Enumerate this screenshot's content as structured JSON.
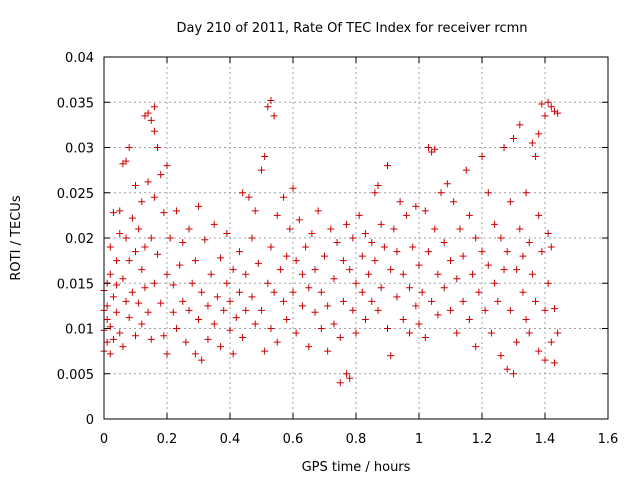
{
  "chart_data": {
    "type": "scatter",
    "title": "Day 210 of 2011, Rate Of TEC Index for receiver rcmn",
    "xlabel": "GPS time / hours",
    "ylabel": "ROTI / TECUs",
    "xlim": [
      0,
      1.6
    ],
    "ylim": [
      0,
      0.04
    ],
    "x_ticks": [
      "0",
      "0.2",
      "0.4",
      "0.6",
      "0.8",
      "1",
      "1.2",
      "1.4",
      "1.6"
    ],
    "y_ticks": [
      "0",
      "0.005",
      "0.01",
      "0.015",
      "0.02",
      "0.025",
      "0.03",
      "0.035",
      "0.04"
    ],
    "grid": true,
    "marker": "+",
    "colors": {
      "series": "#cc0000",
      "grid": "#a0a0a0",
      "axis": "#000000"
    },
    "series": [
      {
        "values": [
          [
            0.0,
            0.0142
          ],
          [
            0.0,
            0.012
          ],
          [
            0.0,
            0.0098
          ],
          [
            0.0,
            0.0075
          ],
          [
            0.01,
            0.015
          ],
          [
            0.01,
            0.011
          ],
          [
            0.01,
            0.0085
          ],
          [
            0.01,
            0.0125
          ],
          [
            0.02,
            0.016
          ],
          [
            0.02,
            0.0102
          ],
          [
            0.02,
            0.019
          ],
          [
            0.02,
            0.0072
          ],
          [
            0.03,
            0.0135
          ],
          [
            0.03,
            0.0228
          ],
          [
            0.03,
            0.0088
          ],
          [
            0.04,
            0.0175
          ],
          [
            0.04,
            0.0118
          ],
          [
            0.04,
            0.0148
          ],
          [
            0.05,
            0.023
          ],
          [
            0.05,
            0.0095
          ],
          [
            0.05,
            0.0205
          ],
          [
            0.06,
            0.0282
          ],
          [
            0.06,
            0.0155
          ],
          [
            0.06,
            0.008
          ],
          [
            0.07,
            0.02
          ],
          [
            0.07,
            0.013
          ],
          [
            0.07,
            0.0285
          ],
          [
            0.08,
            0.03
          ],
          [
            0.08,
            0.0112
          ],
          [
            0.08,
            0.0175
          ],
          [
            0.09,
            0.014
          ],
          [
            0.09,
            0.0222
          ],
          [
            0.1,
            0.0258
          ],
          [
            0.1,
            0.0185
          ],
          [
            0.1,
            0.0092
          ],
          [
            0.11,
            0.0128
          ],
          [
            0.11,
            0.021
          ],
          [
            0.12,
            0.0165
          ],
          [
            0.12,
            0.0105
          ],
          [
            0.12,
            0.024
          ],
          [
            0.13,
            0.019
          ],
          [
            0.13,
            0.0335
          ],
          [
            0.13,
            0.0145
          ],
          [
            0.14,
            0.0338
          ],
          [
            0.14,
            0.0262
          ],
          [
            0.14,
            0.0118
          ],
          [
            0.15,
            0.033
          ],
          [
            0.15,
            0.02
          ],
          [
            0.15,
            0.0088
          ],
          [
            0.16,
            0.0318
          ],
          [
            0.16,
            0.0345
          ],
          [
            0.16,
            0.0245
          ],
          [
            0.16,
            0.015
          ],
          [
            0.17,
            0.03
          ],
          [
            0.17,
            0.0182
          ],
          [
            0.18,
            0.027
          ],
          [
            0.18,
            0.0128
          ],
          [
            0.19,
            0.0228
          ],
          [
            0.19,
            0.0092
          ],
          [
            0.2,
            0.028
          ],
          [
            0.2,
            0.016
          ],
          [
            0.2,
            0.0072
          ],
          [
            0.21,
            0.02
          ],
          [
            0.22,
            0.0118
          ],
          [
            0.22,
            0.0148
          ],
          [
            0.23,
            0.023
          ],
          [
            0.23,
            0.01
          ],
          [
            0.24,
            0.017
          ],
          [
            0.25,
            0.013
          ],
          [
            0.25,
            0.0195
          ],
          [
            0.26,
            0.0085
          ],
          [
            0.27,
            0.021
          ],
          [
            0.27,
            0.012
          ],
          [
            0.28,
            0.015
          ],
          [
            0.29,
            0.0072
          ],
          [
            0.29,
            0.0175
          ],
          [
            0.3,
            0.011
          ],
          [
            0.3,
            0.0235
          ],
          [
            0.31,
            0.014
          ],
          [
            0.31,
            0.0065
          ],
          [
            0.32,
            0.0198
          ],
          [
            0.33,
            0.0125
          ],
          [
            0.33,
            0.0088
          ],
          [
            0.34,
            0.016
          ],
          [
            0.35,
            0.0105
          ],
          [
            0.35,
            0.0215
          ],
          [
            0.36,
            0.0135
          ],
          [
            0.37,
            0.0178
          ],
          [
            0.37,
            0.008
          ],
          [
            0.38,
            0.012
          ],
          [
            0.39,
            0.015
          ],
          [
            0.39,
            0.0205
          ],
          [
            0.4,
            0.0098
          ],
          [
            0.4,
            0.013
          ],
          [
            0.41,
            0.0072
          ],
          [
            0.41,
            0.0165
          ],
          [
            0.42,
            0.0112
          ],
          [
            0.43,
            0.0185
          ],
          [
            0.43,
            0.014
          ],
          [
            0.44,
            0.025
          ],
          [
            0.44,
            0.009
          ],
          [
            0.45,
            0.016
          ],
          [
            0.45,
            0.012
          ],
          [
            0.46,
            0.0245
          ],
          [
            0.47,
            0.0135
          ],
          [
            0.47,
            0.02
          ],
          [
            0.48,
            0.0105
          ],
          [
            0.48,
            0.023
          ],
          [
            0.49,
            0.0172
          ],
          [
            0.5,
            0.0275
          ],
          [
            0.5,
            0.012
          ],
          [
            0.51,
            0.0075
          ],
          [
            0.51,
            0.029
          ],
          [
            0.52,
            0.015
          ],
          [
            0.52,
            0.0345
          ],
          [
            0.53,
            0.0352
          ],
          [
            0.53,
            0.019
          ],
          [
            0.53,
            0.01
          ],
          [
            0.54,
            0.0335
          ],
          [
            0.54,
            0.014
          ],
          [
            0.55,
            0.0225
          ],
          [
            0.55,
            0.0085
          ],
          [
            0.56,
            0.0165
          ],
          [
            0.57,
            0.013
          ],
          [
            0.57,
            0.0245
          ],
          [
            0.58,
            0.011
          ],
          [
            0.58,
            0.018
          ],
          [
            0.59,
            0.021
          ],
          [
            0.6,
            0.0255
          ],
          [
            0.6,
            0.014
          ],
          [
            0.61,
            0.0095
          ],
          [
            0.61,
            0.0175
          ],
          [
            0.62,
            0.022
          ],
          [
            0.63,
            0.0125
          ],
          [
            0.63,
            0.016
          ],
          [
            0.64,
            0.019
          ],
          [
            0.65,
            0.008
          ],
          [
            0.65,
            0.0145
          ],
          [
            0.66,
            0.0205
          ],
          [
            0.67,
            0.0118
          ],
          [
            0.67,
            0.0165
          ],
          [
            0.68,
            0.023
          ],
          [
            0.69,
            0.01
          ],
          [
            0.69,
            0.014
          ],
          [
            0.7,
            0.018
          ],
          [
            0.71,
            0.0125
          ],
          [
            0.71,
            0.0075
          ],
          [
            0.72,
            0.021
          ],
          [
            0.73,
            0.0155
          ],
          [
            0.73,
            0.0105
          ],
          [
            0.74,
            0.0195
          ],
          [
            0.75,
            0.009
          ],
          [
            0.75,
            0.004
          ],
          [
            0.76,
            0.013
          ],
          [
            0.76,
            0.0175
          ],
          [
            0.77,
            0.005
          ],
          [
            0.77,
            0.0215
          ],
          [
            0.78,
            0.0165
          ],
          [
            0.78,
            0.0045
          ],
          [
            0.79,
            0.012
          ],
          [
            0.79,
            0.02
          ],
          [
            0.8,
            0.015
          ],
          [
            0.8,
            0.0095
          ],
          [
            0.81,
            0.0225
          ],
          [
            0.82,
            0.014
          ],
          [
            0.82,
            0.018
          ],
          [
            0.83,
            0.011
          ],
          [
            0.83,
            0.0205
          ],
          [
            0.84,
            0.016
          ],
          [
            0.85,
            0.013
          ],
          [
            0.85,
            0.0195
          ],
          [
            0.86,
            0.025
          ],
          [
            0.86,
            0.0175
          ],
          [
            0.87,
            0.0258
          ],
          [
            0.87,
            0.012
          ],
          [
            0.88,
            0.0215
          ],
          [
            0.88,
            0.0145
          ],
          [
            0.89,
            0.019
          ],
          [
            0.9,
            0.01
          ],
          [
            0.9,
            0.028
          ],
          [
            0.91,
            0.0165
          ],
          [
            0.91,
            0.007
          ],
          [
            0.92,
            0.021
          ],
          [
            0.93,
            0.0135
          ],
          [
            0.93,
            0.0185
          ],
          [
            0.94,
            0.024
          ],
          [
            0.95,
            0.011
          ],
          [
            0.95,
            0.016
          ],
          [
            0.96,
            0.0225
          ],
          [
            0.97,
            0.0095
          ],
          [
            0.97,
            0.0145
          ],
          [
            0.98,
            0.019
          ],
          [
            0.99,
            0.0125
          ],
          [
            0.99,
            0.0235
          ],
          [
            1.0,
            0.0105
          ],
          [
            1.0,
            0.017
          ],
          [
            1.01,
            0.014
          ],
          [
            1.02,
            0.023
          ],
          [
            1.02,
            0.009
          ],
          [
            1.03,
            0.03
          ],
          [
            1.03,
            0.0185
          ],
          [
            1.04,
            0.0295
          ],
          [
            1.04,
            0.013
          ],
          [
            1.05,
            0.0298
          ],
          [
            1.05,
            0.021
          ],
          [
            1.06,
            0.016
          ],
          [
            1.06,
            0.0115
          ],
          [
            1.07,
            0.025
          ],
          [
            1.08,
            0.0145
          ],
          [
            1.08,
            0.0195
          ],
          [
            1.09,
            0.026
          ],
          [
            1.1,
            0.012
          ],
          [
            1.1,
            0.0175
          ],
          [
            1.11,
            0.024
          ],
          [
            1.12,
            0.0095
          ],
          [
            1.12,
            0.0155
          ],
          [
            1.13,
            0.021
          ],
          [
            1.14,
            0.013
          ],
          [
            1.14,
            0.018
          ],
          [
            1.15,
            0.0275
          ],
          [
            1.16,
            0.011
          ],
          [
            1.16,
            0.0225
          ],
          [
            1.17,
            0.016
          ],
          [
            1.18,
            0.008
          ],
          [
            1.18,
            0.02
          ],
          [
            1.19,
            0.014
          ],
          [
            1.2,
            0.029
          ],
          [
            1.2,
            0.0185
          ],
          [
            1.21,
            0.012
          ],
          [
            1.22,
            0.025
          ],
          [
            1.22,
            0.017
          ],
          [
            1.23,
            0.0095
          ],
          [
            1.24,
            0.0215
          ],
          [
            1.24,
            0.015
          ],
          [
            1.25,
            0.013
          ],
          [
            1.26,
            0.02
          ],
          [
            1.26,
            0.007
          ],
          [
            1.27,
            0.0165
          ],
          [
            1.27,
            0.03
          ],
          [
            1.28,
            0.0055
          ],
          [
            1.28,
            0.0185
          ],
          [
            1.29,
            0.012
          ],
          [
            1.29,
            0.024
          ],
          [
            1.3,
            0.005
          ],
          [
            1.3,
            0.031
          ],
          [
            1.31,
            0.0165
          ],
          [
            1.31,
            0.0085
          ],
          [
            1.32,
            0.0325
          ],
          [
            1.32,
            0.021
          ],
          [
            1.33,
            0.014
          ],
          [
            1.33,
            0.018
          ],
          [
            1.34,
            0.011
          ],
          [
            1.34,
            0.025
          ],
          [
            1.35,
            0.0195
          ],
          [
            1.35,
            0.0095
          ],
          [
            1.36,
            0.0305
          ],
          [
            1.36,
            0.016
          ],
          [
            1.37,
            0.029
          ],
          [
            1.37,
            0.013
          ],
          [
            1.38,
            0.0315
          ],
          [
            1.38,
            0.0225
          ],
          [
            1.38,
            0.0075
          ],
          [
            1.39,
            0.0348
          ],
          [
            1.39,
            0.0185
          ],
          [
            1.4,
            0.0335
          ],
          [
            1.4,
            0.012
          ],
          [
            1.4,
            0.0065
          ],
          [
            1.41,
            0.035
          ],
          [
            1.41,
            0.0205
          ],
          [
            1.41,
            0.015
          ],
          [
            1.42,
            0.0345
          ],
          [
            1.42,
            0.0085
          ],
          [
            1.42,
            0.019
          ],
          [
            1.43,
            0.034
          ],
          [
            1.43,
            0.0122
          ],
          [
            1.43,
            0.0062
          ],
          [
            1.44,
            0.0338
          ],
          [
            1.44,
            0.0095
          ]
        ]
      }
    ]
  }
}
